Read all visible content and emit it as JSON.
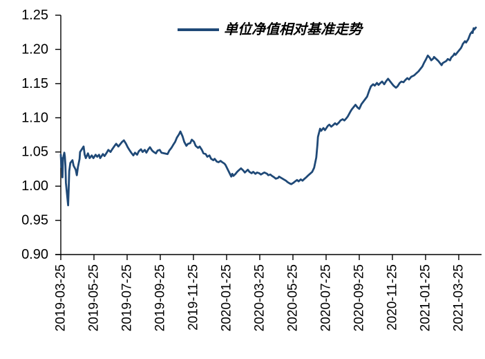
{
  "colors": {
    "line": "#1F4977",
    "axis": "#000000",
    "text": "#000000",
    "background": "#FFFFFF"
  },
  "legend": {
    "label": "单位净值相对基准走势"
  },
  "chart_data": {
    "type": "line",
    "title": "",
    "xlabel": "",
    "ylabel": "",
    "grid": false,
    "legend_position": "top-center",
    "ylim": [
      0.9,
      1.25
    ],
    "y_ticks": [
      1.25,
      1.2,
      1.15,
      1.1,
      1.05,
      1.0,
      0.95,
      0.9
    ],
    "x_tick_labels": [
      "2019-03-25",
      "2019-05-25",
      "2019-07-25",
      "2019-09-25",
      "2019-11-25",
      "2020-01-25",
      "2020-03-25",
      "2020-05-25",
      "2020-07-25",
      "2020-09-25",
      "2020-11-25",
      "2021-01-25",
      "2021-03-25"
    ],
    "series": [
      {
        "name": "单位净值相对基准走势",
        "color": "#1F4977",
        "points": [
          [
            "2019-03-25",
            1.046
          ],
          [
            "2019-03-26",
            1.028
          ],
          [
            "2019-03-27",
            1.041
          ],
          [
            "2019-03-28",
            1.013
          ],
          [
            "2019-03-29",
            1.04
          ],
          [
            "2019-04-01",
            1.049
          ],
          [
            "2019-04-02",
            1.043
          ],
          [
            "2019-04-03",
            1.03
          ],
          [
            "2019-04-04",
            1.005
          ],
          [
            "2019-04-08",
            0.972
          ],
          [
            "2019-04-09",
            0.995
          ],
          [
            "2019-04-10",
            1.022
          ],
          [
            "2019-04-12",
            1.034
          ],
          [
            "2019-04-16",
            1.038
          ],
          [
            "2019-04-18",
            1.03
          ],
          [
            "2019-04-22",
            1.024
          ],
          [
            "2019-04-24",
            1.016
          ],
          [
            "2019-04-26",
            1.028
          ],
          [
            "2019-04-29",
            1.04
          ],
          [
            "2019-04-30",
            1.05
          ],
          [
            "2019-05-06",
            1.058
          ],
          [
            "2019-05-08",
            1.046
          ],
          [
            "2019-05-10",
            1.041
          ],
          [
            "2019-05-14",
            1.048
          ],
          [
            "2019-05-17",
            1.041
          ],
          [
            "2019-05-21",
            1.045
          ],
          [
            "2019-05-24",
            1.041
          ],
          [
            "2019-05-28",
            1.046
          ],
          [
            "2019-05-31",
            1.043
          ],
          [
            "2019-06-04",
            1.046
          ],
          [
            "2019-06-06",
            1.041
          ],
          [
            "2019-06-11",
            1.047
          ],
          [
            "2019-06-14",
            1.044
          ],
          [
            "2019-06-18",
            1.049
          ],
          [
            "2019-06-21",
            1.053
          ],
          [
            "2019-06-25",
            1.05
          ],
          [
            "2019-06-28",
            1.054
          ],
          [
            "2019-07-02",
            1.059
          ],
          [
            "2019-07-05",
            1.062
          ],
          [
            "2019-07-09",
            1.058
          ],
          [
            "2019-07-12",
            1.061
          ],
          [
            "2019-07-16",
            1.065
          ],
          [
            "2019-07-19",
            1.067
          ],
          [
            "2019-07-23",
            1.062
          ],
          [
            "2019-07-26",
            1.057
          ],
          [
            "2019-07-30",
            1.052
          ],
          [
            "2019-08-02",
            1.049
          ],
          [
            "2019-08-06",
            1.045
          ],
          [
            "2019-08-09",
            1.049
          ],
          [
            "2019-08-13",
            1.046
          ],
          [
            "2019-08-16",
            1.051
          ],
          [
            "2019-08-20",
            1.054
          ],
          [
            "2019-08-23",
            1.05
          ],
          [
            "2019-08-27",
            1.053
          ],
          [
            "2019-08-30",
            1.049
          ],
          [
            "2019-09-03",
            1.054
          ],
          [
            "2019-09-06",
            1.057
          ],
          [
            "2019-09-10",
            1.052
          ],
          [
            "2019-09-13",
            1.05
          ],
          [
            "2019-09-17",
            1.048
          ],
          [
            "2019-09-20",
            1.052
          ],
          [
            "2019-09-24",
            1.053
          ],
          [
            "2019-09-27",
            1.049
          ],
          [
            "2019-10-08",
            1.047
          ],
          [
            "2019-10-11",
            1.052
          ],
          [
            "2019-10-15",
            1.056
          ],
          [
            "2019-10-18",
            1.06
          ],
          [
            "2019-10-22",
            1.065
          ],
          [
            "2019-10-25",
            1.071
          ],
          [
            "2019-10-29",
            1.076
          ],
          [
            "2019-11-01",
            1.08
          ],
          [
            "2019-11-05",
            1.073
          ],
          [
            "2019-11-08",
            1.065
          ],
          [
            "2019-11-12",
            1.059
          ],
          [
            "2019-11-15",
            1.062
          ],
          [
            "2019-11-19",
            1.063
          ],
          [
            "2019-11-22",
            1.068
          ],
          [
            "2019-11-26",
            1.065
          ],
          [
            "2019-11-29",
            1.059
          ],
          [
            "2019-12-03",
            1.056
          ],
          [
            "2019-12-06",
            1.058
          ],
          [
            "2019-12-10",
            1.053
          ],
          [
            "2019-12-13",
            1.048
          ],
          [
            "2019-12-17",
            1.047
          ],
          [
            "2019-12-20",
            1.043
          ],
          [
            "2019-12-24",
            1.045
          ],
          [
            "2019-12-27",
            1.04
          ],
          [
            "2019-12-31",
            1.038
          ],
          [
            "2020-01-03",
            1.04
          ],
          [
            "2020-01-07",
            1.036
          ],
          [
            "2020-01-10",
            1.035
          ],
          [
            "2020-01-14",
            1.037
          ],
          [
            "2020-01-17",
            1.035
          ],
          [
            "2020-01-21",
            1.033
          ],
          [
            "2020-01-23",
            1.031
          ],
          [
            "2020-02-03",
            1.014
          ],
          [
            "2020-02-05",
            1.018
          ],
          [
            "2020-02-07",
            1.015
          ],
          [
            "2020-02-11",
            1.018
          ],
          [
            "2020-02-14",
            1.021
          ],
          [
            "2020-02-18",
            1.024
          ],
          [
            "2020-02-21",
            1.026
          ],
          [
            "2020-02-25",
            1.023
          ],
          [
            "2020-02-28",
            1.02
          ],
          [
            "2020-03-03",
            1.024
          ],
          [
            "2020-03-06",
            1.021
          ],
          [
            "2020-03-10",
            1.019
          ],
          [
            "2020-03-13",
            1.021
          ],
          [
            "2020-03-17",
            1.018
          ],
          [
            "2020-03-20",
            1.02
          ],
          [
            "2020-03-24",
            1.019
          ],
          [
            "2020-03-27",
            1.017
          ],
          [
            "2020-03-31",
            1.019
          ],
          [
            "2020-04-03",
            1.02
          ],
          [
            "2020-04-08",
            1.018
          ],
          [
            "2020-04-10",
            1.016
          ],
          [
            "2020-04-14",
            1.017
          ],
          [
            "2020-04-17",
            1.015
          ],
          [
            "2020-04-21",
            1.013
          ],
          [
            "2020-04-24",
            1.011
          ],
          [
            "2020-04-28",
            1.012
          ],
          [
            "2020-04-30",
            1.014
          ],
          [
            "2020-05-08",
            1.01
          ],
          [
            "2020-05-12",
            1.008
          ],
          [
            "2020-05-15",
            1.006
          ],
          [
            "2020-05-19",
            1.004
          ],
          [
            "2020-05-22",
            1.003
          ],
          [
            "2020-05-26",
            1.005
          ],
          [
            "2020-05-29",
            1.007
          ],
          [
            "2020-06-02",
            1.009
          ],
          [
            "2020-06-05",
            1.007
          ],
          [
            "2020-06-09",
            1.01
          ],
          [
            "2020-06-12",
            1.008
          ],
          [
            "2020-06-16",
            1.011
          ],
          [
            "2020-06-19",
            1.013
          ],
          [
            "2020-06-23",
            1.016
          ],
          [
            "2020-06-30",
            1.021
          ],
          [
            "2020-07-03",
            1.027
          ],
          [
            "2020-07-07",
            1.042
          ],
          [
            "2020-07-09",
            1.06
          ],
          [
            "2020-07-10",
            1.072
          ],
          [
            "2020-07-13",
            1.081
          ],
          [
            "2020-07-14",
            1.084
          ],
          [
            "2020-07-16",
            1.081
          ],
          [
            "2020-07-20",
            1.085
          ],
          [
            "2020-07-23",
            1.082
          ],
          [
            "2020-07-28",
            1.088
          ],
          [
            "2020-07-31",
            1.09
          ],
          [
            "2020-08-04",
            1.087
          ],
          [
            "2020-08-07",
            1.089
          ],
          [
            "2020-08-11",
            1.092
          ],
          [
            "2020-08-14",
            1.09
          ],
          [
            "2020-08-18",
            1.093
          ],
          [
            "2020-08-21",
            1.096
          ],
          [
            "2020-08-25",
            1.098
          ],
          [
            "2020-08-28",
            1.096
          ],
          [
            "2020-09-01",
            1.099
          ],
          [
            "2020-09-04",
            1.102
          ],
          [
            "2020-09-08",
            1.108
          ],
          [
            "2020-09-11",
            1.112
          ],
          [
            "2020-09-15",
            1.116
          ],
          [
            "2020-09-18",
            1.119
          ],
          [
            "2020-09-22",
            1.115
          ],
          [
            "2020-09-25",
            1.113
          ],
          [
            "2020-09-29",
            1.12
          ],
          [
            "2020-10-09",
            1.131
          ],
          [
            "2020-10-13",
            1.14
          ],
          [
            "2020-10-16",
            1.146
          ],
          [
            "2020-10-20",
            1.149
          ],
          [
            "2020-10-23",
            1.147
          ],
          [
            "2020-10-27",
            1.151
          ],
          [
            "2020-10-30",
            1.148
          ],
          [
            "2020-11-03",
            1.151
          ],
          [
            "2020-11-06",
            1.153
          ],
          [
            "2020-11-10",
            1.149
          ],
          [
            "2020-11-13",
            1.153
          ],
          [
            "2020-11-17",
            1.157
          ],
          [
            "2020-11-20",
            1.154
          ],
          [
            "2020-11-24",
            1.15
          ],
          [
            "2020-11-27",
            1.147
          ],
          [
            "2020-12-01",
            1.144
          ],
          [
            "2020-12-04",
            1.146
          ],
          [
            "2020-12-08",
            1.151
          ],
          [
            "2020-12-11",
            1.153
          ],
          [
            "2020-12-15",
            1.152
          ],
          [
            "2020-12-18",
            1.155
          ],
          [
            "2020-12-22",
            1.158
          ],
          [
            "2020-12-25",
            1.156
          ],
          [
            "2020-12-29",
            1.16
          ],
          [
            "2021-01-04",
            1.162
          ],
          [
            "2021-01-08",
            1.165
          ],
          [
            "2021-01-12",
            1.168
          ],
          [
            "2021-01-15",
            1.171
          ],
          [
            "2021-01-19",
            1.175
          ],
          [
            "2021-01-22",
            1.18
          ],
          [
            "2021-01-26",
            1.186
          ],
          [
            "2021-01-29",
            1.191
          ],
          [
            "2021-02-02",
            1.188
          ],
          [
            "2021-02-05",
            1.184
          ],
          [
            "2021-02-09",
            1.187
          ],
          [
            "2021-02-10",
            1.189
          ],
          [
            "2021-02-18",
            1.183
          ],
          [
            "2021-02-22",
            1.179
          ],
          [
            "2021-02-24",
            1.177
          ],
          [
            "2021-02-26",
            1.18
          ],
          [
            "2021-03-02",
            1.183
          ],
          [
            "2021-03-05",
            1.186
          ],
          [
            "2021-03-09",
            1.184
          ],
          [
            "2021-03-11",
            1.188
          ],
          [
            "2021-03-15",
            1.191
          ],
          [
            "2021-03-17",
            1.194
          ],
          [
            "2021-03-19",
            1.192
          ],
          [
            "2021-03-23",
            1.196
          ],
          [
            "2021-03-25",
            1.198
          ],
          [
            "2021-03-29",
            1.202
          ],
          [
            "2021-03-31",
            1.205
          ],
          [
            "2021-04-02",
            1.208
          ],
          [
            "2021-04-06",
            1.212
          ],
          [
            "2021-04-08",
            1.21
          ],
          [
            "2021-04-12",
            1.215
          ],
          [
            "2021-04-14",
            1.219
          ],
          [
            "2021-04-16",
            1.223
          ],
          [
            "2021-04-19",
            1.226
          ],
          [
            "2021-04-20",
            1.224
          ],
          [
            "2021-04-21",
            1.228
          ],
          [
            "2021-04-22",
            1.231
          ],
          [
            "2021-04-23",
            1.229
          ],
          [
            "2021-04-26",
            1.232
          ]
        ]
      }
    ]
  }
}
